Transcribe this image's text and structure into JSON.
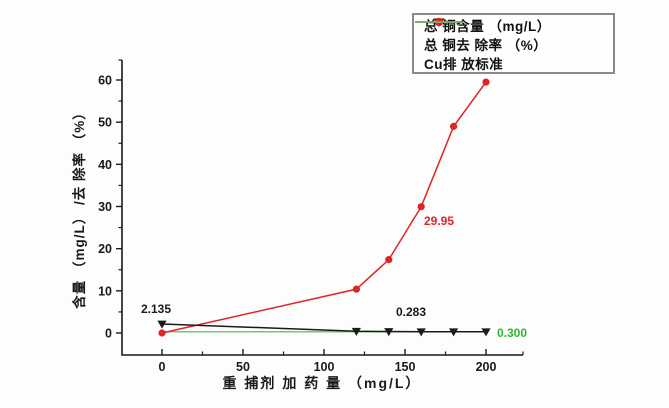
{
  "chart_data": {
    "type": "line",
    "x": [
      0,
      120,
      140,
      160,
      180,
      200
    ],
    "series": [
      {
        "name": "总 铜含量 （mg/L）",
        "color": "#1a1a1a",
        "marker": "triangle-down",
        "values": [
          2.135,
          0.42,
          0.35,
          0.283,
          0.3,
          0.3
        ]
      },
      {
        "name": "总 铜去 除率 （%）",
        "color": "#e02424",
        "marker": "circle",
        "values": [
          0,
          10.4,
          17.4,
          29.95,
          49.0,
          59.5
        ]
      },
      {
        "name": "Cu排 放标准",
        "color": "#6fcc6f",
        "marker": "none",
        "values": [
          0.3,
          0.3,
          0.3,
          0.3,
          0.3,
          0.3
        ]
      }
    ],
    "xlabel": "重 捕剂 加 药 量 （mg/L）",
    "ylabel": "含量 （mg/L） /去 除率 （%）",
    "xticks": [
      0,
      50,
      100,
      150,
      200
    ],
    "yticks": [
      0,
      10,
      20,
      30,
      40,
      50,
      60
    ],
    "xminors": [
      25,
      75,
      125,
      175
    ],
    "yminors": [
      5,
      15,
      25,
      35,
      45,
      55
    ],
    "xlim": [
      -25,
      222
    ],
    "ylim": [
      -5.2,
      64.8
    ],
    "grid": false,
    "legend_position": "top-right",
    "annotations": [
      {
        "text": "2.135",
        "color": "#1a1a1a",
        "attached_to": "总铜含量 at x=0"
      },
      {
        "text": "0.283",
        "color": "#1a1a1a",
        "attached_to": "总铜含量 at x=160"
      },
      {
        "text": "29.95",
        "color": "#e02424",
        "attached_to": "总铜去除率 at x=160"
      },
      {
        "text": "0.300",
        "color": "#2db82d",
        "attached_to": "Cu排放标准 line end"
      }
    ]
  },
  "legend": {
    "items": [
      {
        "label": "总 铜含量 （mg/L）"
      },
      {
        "label": "总 铜去 除率 （%）"
      },
      {
        "label": "Cu排 放标准"
      }
    ]
  },
  "colors": {
    "axis": "#1a1a1a",
    "content_series": "#1a1a1a",
    "removal_series": "#e02424",
    "standard_series": "#6fcc6f",
    "standard_label": "#2db82d",
    "legend_border": "#8a8a8a",
    "background": "#fdfdfd"
  }
}
